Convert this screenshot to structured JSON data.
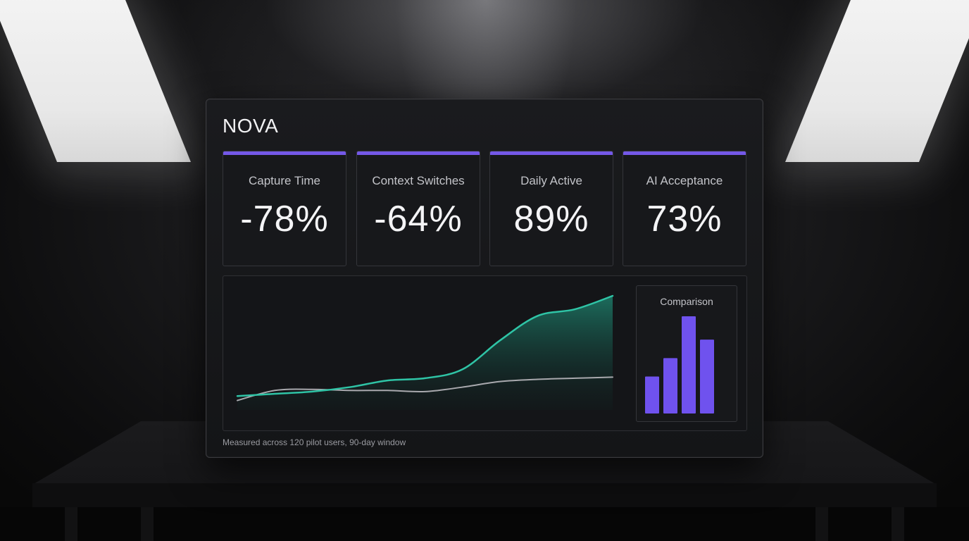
{
  "brand": {
    "name": "NOVA",
    "accent_color": "#7458e8"
  },
  "kpis": [
    {
      "label": "Capture Time",
      "value": "-78%"
    },
    {
      "label": "Context Switches",
      "value": "-64%"
    },
    {
      "label": "Daily Active",
      "value": "89%"
    },
    {
      "label": "AI Acceptance",
      "value": "73%"
    }
  ],
  "trend_chart": {
    "type": "area",
    "series": [
      {
        "color": "#2fc4a6",
        "values": [
          10,
          12,
          14,
          18,
          24,
          26,
          34,
          60,
          82,
          88,
          100
        ]
      },
      {
        "color": "#a9a9ae",
        "values": [
          6,
          15,
          16,
          15,
          15,
          14,
          18,
          23,
          25,
          26,
          27
        ]
      }
    ]
  },
  "comparison": {
    "title": "Comparison",
    "bar_color": "#6f52ee",
    "values": [
      38,
      57,
      100,
      76
    ]
  },
  "footnote": "Measured across 120 pilot users, 90-day window",
  "chart_data": [
    {
      "type": "area",
      "title": "",
      "xlabel": "",
      "ylabel": "",
      "series": [
        {
          "color": "#2fc4a6",
          "values": [
            10,
            12,
            14,
            18,
            24,
            26,
            34,
            60,
            82,
            88,
            100
          ]
        },
        {
          "color": "#a9a9ae",
          "values": [
            6,
            15,
            16,
            15,
            15,
            14,
            18,
            23,
            25,
            26,
            27
          ]
        }
      ],
      "ylim": [
        0,
        100
      ],
      "grid": false
    },
    {
      "type": "bar",
      "title": "Comparison",
      "values": [
        38,
        57,
        100,
        76
      ],
      "ylim": [
        0,
        100
      ],
      "grid": false
    }
  ]
}
